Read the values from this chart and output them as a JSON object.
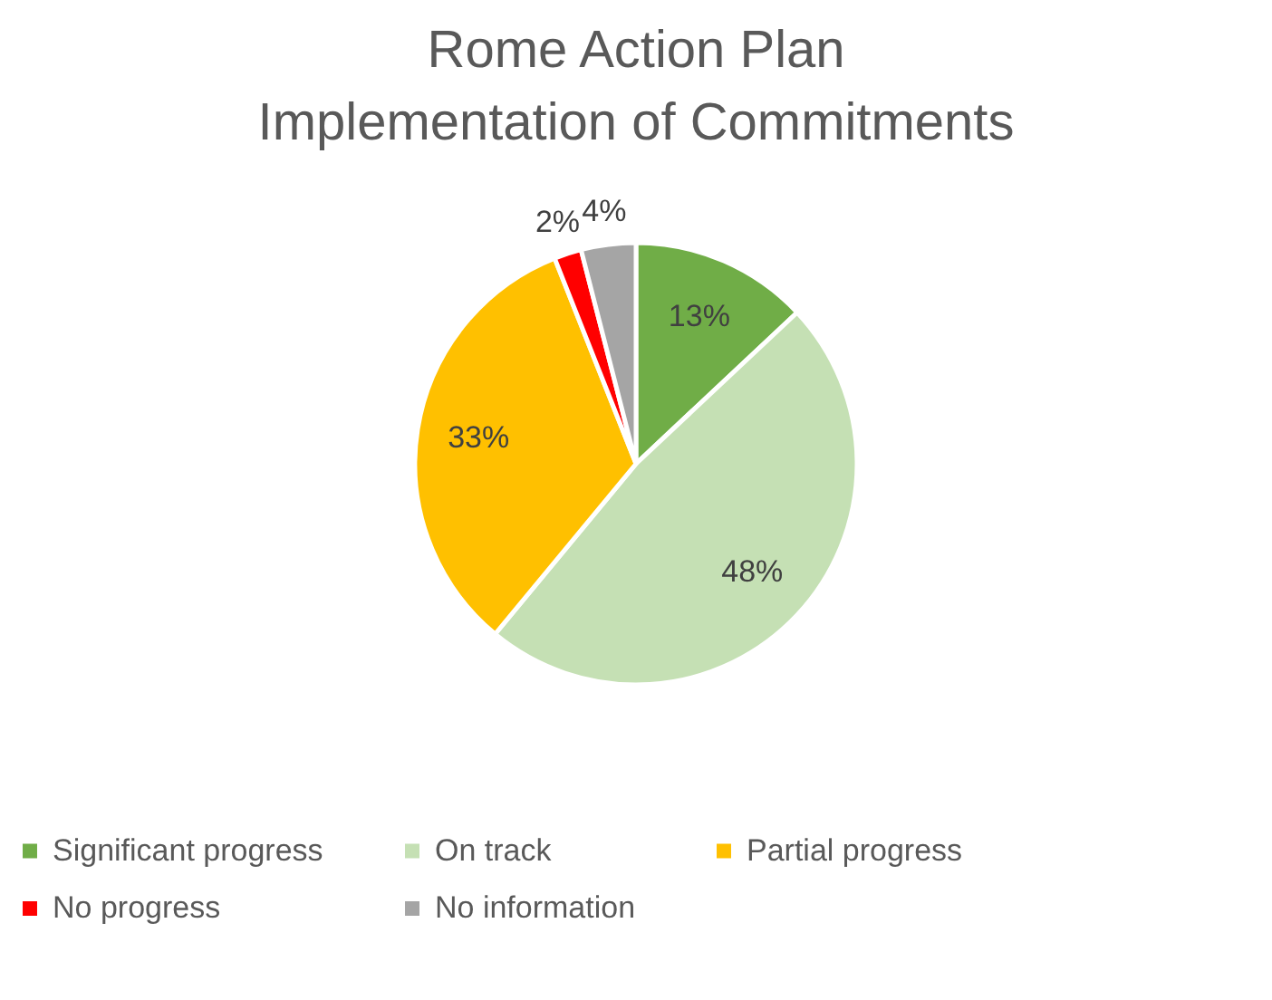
{
  "chart_data": {
    "type": "pie",
    "title": "Rome Action Plan\nImplementation of Commitments",
    "categories": [
      "Significant progress",
      "On track",
      "Partial progress",
      "No progress",
      "No information"
    ],
    "values": [
      13,
      48,
      33,
      2,
      4
    ],
    "value_labels": [
      "13%",
      "48%",
      "33%",
      "2%",
      "4%"
    ],
    "colors": [
      "#70ad47",
      "#c5e0b4",
      "#ffc000",
      "#ff0000",
      "#a5a5a5"
    ],
    "legend": "bottom"
  }
}
